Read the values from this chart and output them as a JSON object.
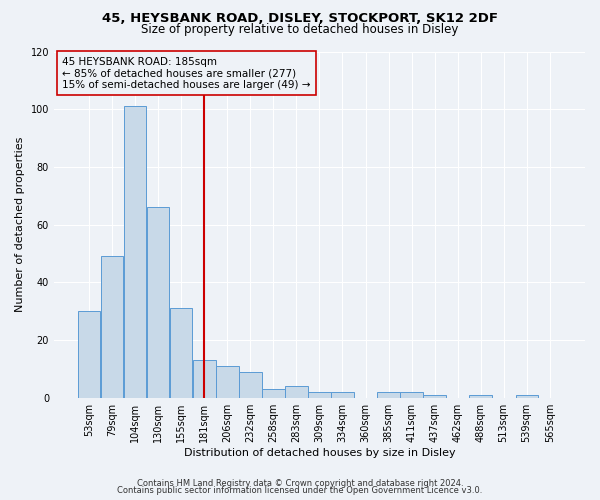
{
  "title1": "45, HEYSBANK ROAD, DISLEY, STOCKPORT, SK12 2DF",
  "title2": "Size of property relative to detached houses in Disley",
  "xlabel": "Distribution of detached houses by size in Disley",
  "ylabel": "Number of detached properties",
  "categories": [
    "53sqm",
    "79sqm",
    "104sqm",
    "130sqm",
    "155sqm",
    "181sqm",
    "206sqm",
    "232sqm",
    "258sqm",
    "283sqm",
    "309sqm",
    "334sqm",
    "360sqm",
    "385sqm",
    "411sqm",
    "437sqm",
    "462sqm",
    "488sqm",
    "513sqm",
    "539sqm",
    "565sqm"
  ],
  "values": [
    30,
    49,
    101,
    66,
    31,
    13,
    11,
    9,
    3,
    4,
    2,
    2,
    0,
    2,
    2,
    1,
    0,
    1,
    0,
    1,
    0
  ],
  "bar_color": "#c8d9e8",
  "bar_edge_color": "#5b9bd5",
  "vline_x_index": 5,
  "vline_color": "#cc0000",
  "annotation_line1": "45 HEYSBANK ROAD: 185sqm",
  "annotation_line2": "← 85% of detached houses are smaller (277)",
  "annotation_line3": "15% of semi-detached houses are larger (49) →",
  "annotation_box_color": "#cc0000",
  "ylim": [
    0,
    120
  ],
  "yticks": [
    0,
    20,
    40,
    60,
    80,
    100,
    120
  ],
  "footer1": "Contains HM Land Registry data © Crown copyright and database right 2024.",
  "footer2": "Contains public sector information licensed under the Open Government Licence v3.0.",
  "bg_color": "#eef2f7",
  "grid_color": "#ffffff",
  "title1_fontsize": 9.5,
  "title2_fontsize": 8.5,
  "xlabel_fontsize": 8,
  "ylabel_fontsize": 8,
  "tick_fontsize": 7,
  "footer_fontsize": 6,
  "annotation_fontsize": 7.5
}
